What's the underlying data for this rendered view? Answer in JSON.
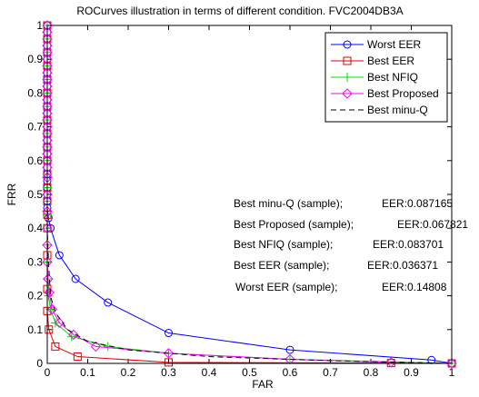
{
  "chart_data": {
    "type": "line",
    "title": "ROCurves illustration in terms of different condition. FVC2004DB3A",
    "xlabel": "FAR",
    "ylabel": "FRR",
    "xlim": [
      0,
      1
    ],
    "ylim": [
      0,
      1
    ],
    "grid": false,
    "legend_position": "top-right",
    "x_ticks": [
      "0",
      "0.1",
      "0.2",
      "0.3",
      "0.4",
      "0.5",
      "0.6",
      "0.7",
      "0.8",
      "0.9",
      "1"
    ],
    "y_ticks": [
      "0",
      "0.1",
      "0.2",
      "0.3",
      "0.4",
      "0.5",
      "0.6",
      "0.7",
      "0.8",
      "0.9",
      "1"
    ],
    "series": [
      {
        "name": "Worst EER",
        "color": "#0000ff",
        "line_style": "solid",
        "marker": "circle",
        "x": [
          0,
          0,
          0,
          0,
          0,
          0,
          0,
          0,
          0,
          0,
          0,
          0,
          0,
          0,
          0,
          0,
          0,
          0,
          0,
          0,
          0,
          0,
          0,
          0,
          0,
          0,
          0,
          0,
          0.003,
          0.008,
          0.03,
          0.07,
          0.15,
          0.3,
          0.6,
          0.95,
          1.0
        ],
        "y": [
          1.0,
          0.98,
          0.96,
          0.94,
          0.92,
          0.9,
          0.88,
          0.86,
          0.84,
          0.82,
          0.8,
          0.78,
          0.76,
          0.74,
          0.72,
          0.7,
          0.68,
          0.66,
          0.64,
          0.62,
          0.6,
          0.58,
          0.56,
          0.54,
          0.52,
          0.5,
          0.48,
          0.46,
          0.43,
          0.4,
          0.32,
          0.25,
          0.18,
          0.09,
          0.04,
          0.01,
          0
        ]
      },
      {
        "name": "Best EER",
        "color": "#e00000",
        "line_style": "solid",
        "marker": "square",
        "x": [
          0,
          0,
          0,
          0,
          0,
          0,
          0,
          0,
          0,
          0,
          0,
          0,
          0,
          0,
          0,
          0,
          0,
          0,
          0,
          0.004,
          0.02,
          0.075,
          0.3,
          0.85,
          1.0
        ],
        "y": [
          1.0,
          0.96,
          0.92,
          0.88,
          0.84,
          0.8,
          0.76,
          0.72,
          0.68,
          0.64,
          0.6,
          0.56,
          0.52,
          0.48,
          0.44,
          0.4,
          0.32,
          0.22,
          0.155,
          0.1,
          0.05,
          0.02,
          0.003,
          0.001,
          0
        ]
      },
      {
        "name": "Best NFIQ",
        "color": "#00dd00",
        "line_style": "solid",
        "marker": "plus",
        "x": [
          0,
          0,
          0,
          0,
          0,
          0,
          0,
          0,
          0,
          0,
          0,
          0,
          0,
          0,
          0,
          0,
          0,
          0,
          0,
          0.003,
          0.008,
          0.02,
          0.06,
          0.15,
          0.3,
          0.6,
          1.0
        ],
        "y": [
          1.0,
          0.96,
          0.92,
          0.88,
          0.84,
          0.8,
          0.76,
          0.72,
          0.68,
          0.64,
          0.6,
          0.56,
          0.52,
          0.48,
          0.44,
          0.4,
          0.35,
          0.3,
          0.25,
          0.2,
          0.16,
          0.12,
          0.08,
          0.05,
          0.03,
          0.012,
          0
        ]
      },
      {
        "name": "Best Proposed",
        "color": "#ff00ff",
        "line_style": "solid",
        "marker": "diamond",
        "x": [
          0,
          0,
          0,
          0,
          0,
          0,
          0,
          0,
          0,
          0,
          0,
          0,
          0,
          0,
          0,
          0,
          0,
          0,
          0,
          0,
          0,
          0,
          0,
          0,
          0,
          0,
          0,
          0,
          0.002,
          0.005,
          0.012,
          0.03,
          0.065,
          0.12,
          0.3,
          0.6,
          0.85,
          1.0
        ],
        "y": [
          1.0,
          0.98,
          0.96,
          0.94,
          0.92,
          0.9,
          0.88,
          0.86,
          0.84,
          0.82,
          0.8,
          0.78,
          0.76,
          0.74,
          0.72,
          0.7,
          0.68,
          0.66,
          0.64,
          0.62,
          0.6,
          0.58,
          0.55,
          0.5,
          0.45,
          0.4,
          0.35,
          0.3,
          0.25,
          0.21,
          0.16,
          0.12,
          0.085,
          0.05,
          0.03,
          0.012,
          0.003,
          0
        ]
      },
      {
        "name": "Best minu-Q",
        "color": "#000000",
        "line_style": "dashed",
        "marker": "none",
        "x": [
          0,
          0,
          0,
          0.003,
          0.008,
          0.02,
          0.05,
          0.1,
          0.2,
          0.4,
          0.7,
          1.0
        ],
        "y": [
          1.0,
          0.6,
          0.4,
          0.3,
          0.2,
          0.15,
          0.1,
          0.065,
          0.04,
          0.02,
          0.008,
          0
        ]
      }
    ],
    "annotations": [
      "Best minu-Q (sample);",
      "EER:0.087165",
      "Best Proposed (sample);",
      "EER:0.067821",
      "Best NFIQ (sample);",
      "EER:0.083701",
      "Best EER (sample);",
      "EER:0.036371",
      "Worst EER (sample);",
      "EER:0.14808"
    ]
  }
}
